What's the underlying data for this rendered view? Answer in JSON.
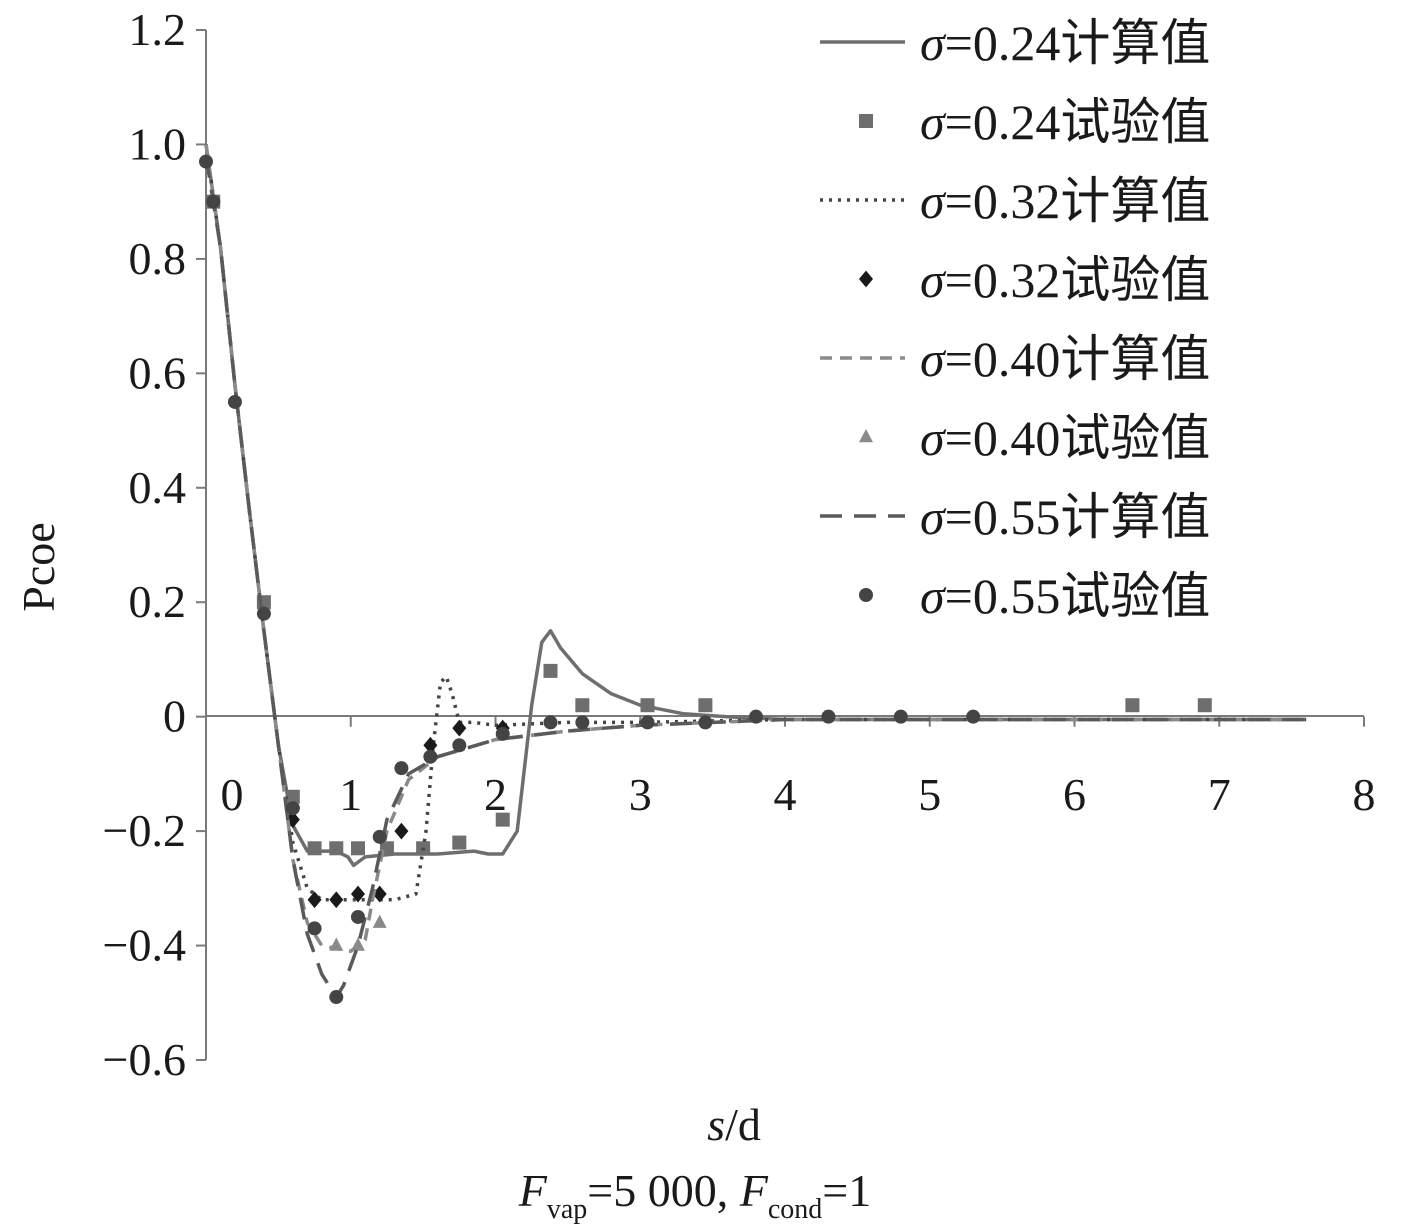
{
  "chart_data": {
    "type": "line",
    "ylabel": "Pcoe",
    "xlabel": {
      "var": "s",
      "rest": "/d"
    },
    "caption": {
      "F1": "F",
      "sub1": "vap",
      "mid": "=5 000,  ",
      "F2": "F",
      "sub2": "cond",
      "end": "=1"
    },
    "xlim": [
      0,
      8
    ],
    "ylim": [
      -0.6,
      1.2
    ],
    "x_ticks": [
      "0",
      "1",
      "2",
      "3",
      "4",
      "5",
      "6",
      "7",
      "8"
    ],
    "y_ticks": [
      "1.2",
      "1.0",
      "0.8",
      "0.6",
      "0.4",
      "0.2",
      "0",
      "−0.2",
      "−0.4",
      "−0.6"
    ],
    "y_tick_values": [
      1.2,
      1.0,
      0.8,
      0.6,
      0.4,
      0.2,
      0,
      -0.2,
      -0.4,
      -0.6
    ],
    "x_tick_values": [
      0,
      1,
      2,
      3,
      4,
      5,
      6,
      7,
      8
    ],
    "legend_position": "top-right",
    "series": [
      {
        "name": "σ=0.24计算值",
        "sigma": "σ",
        "label": "=0.24计算值",
        "kind": "line",
        "style": "solid",
        "color": "#6e6e6e",
        "points": [
          [
            0,
            1.0
          ],
          [
            0.1,
            0.82
          ],
          [
            0.2,
            0.58
          ],
          [
            0.3,
            0.36
          ],
          [
            0.4,
            0.15
          ],
          [
            0.5,
            -0.05
          ],
          [
            0.6,
            -0.19
          ],
          [
            0.7,
            -0.235
          ],
          [
            0.9,
            -0.235
          ],
          [
            0.98,
            -0.245
          ],
          [
            1.02,
            -0.26
          ],
          [
            1.1,
            -0.245
          ],
          [
            1.3,
            -0.24
          ],
          [
            1.6,
            -0.24
          ],
          [
            1.85,
            -0.235
          ],
          [
            1.95,
            -0.24
          ],
          [
            2.05,
            -0.24
          ],
          [
            2.15,
            -0.2
          ],
          [
            2.25,
            0.02
          ],
          [
            2.32,
            0.13
          ],
          [
            2.38,
            0.15
          ],
          [
            2.45,
            0.12
          ],
          [
            2.6,
            0.075
          ],
          [
            2.8,
            0.04
          ],
          [
            3.0,
            0.02
          ],
          [
            3.3,
            0.005
          ],
          [
            3.6,
            0.0
          ],
          [
            4.0,
            -0.005
          ],
          [
            5.0,
            -0.005
          ],
          [
            6.0,
            -0.005
          ],
          [
            7.6,
            -0.005
          ]
        ]
      },
      {
        "name": "σ=0.24试验值",
        "sigma": "σ",
        "label": "=0.24试验值",
        "kind": "marker",
        "marker": "square",
        "color": "#6e6e6e",
        "points": [
          [
            0.05,
            0.9
          ],
          [
            0.4,
            0.2
          ],
          [
            0.6,
            -0.14
          ],
          [
            0.75,
            -0.23
          ],
          [
            0.9,
            -0.23
          ],
          [
            1.05,
            -0.23
          ],
          [
            1.25,
            -0.23
          ],
          [
            1.5,
            -0.23
          ],
          [
            1.75,
            -0.22
          ],
          [
            2.05,
            -0.18
          ],
          [
            2.38,
            0.08
          ],
          [
            2.6,
            0.02
          ],
          [
            3.05,
            0.02
          ],
          [
            3.45,
            0.02
          ],
          [
            6.4,
            0.02
          ],
          [
            6.9,
            0.02
          ]
        ]
      },
      {
        "name": "σ=0.32计算值",
        "sigma": "σ",
        "label": "=0.32计算值",
        "kind": "line",
        "style": "dotted",
        "color": "#444444",
        "points": [
          [
            0,
            1.0
          ],
          [
            0.1,
            0.82
          ],
          [
            0.2,
            0.58
          ],
          [
            0.3,
            0.36
          ],
          [
            0.4,
            0.15
          ],
          [
            0.5,
            -0.05
          ],
          [
            0.6,
            -0.22
          ],
          [
            0.7,
            -0.3
          ],
          [
            0.8,
            -0.32
          ],
          [
            1.0,
            -0.32
          ],
          [
            1.3,
            -0.32
          ],
          [
            1.45,
            -0.31
          ],
          [
            1.52,
            -0.2
          ],
          [
            1.57,
            -0.05
          ],
          [
            1.62,
            0.06
          ],
          [
            1.66,
            0.07
          ],
          [
            1.7,
            0.04
          ],
          [
            1.75,
            -0.01
          ],
          [
            1.85,
            -0.01
          ],
          [
            2.0,
            -0.015
          ],
          [
            2.5,
            -0.01
          ],
          [
            3.0,
            -0.01
          ],
          [
            4.0,
            -0.005
          ],
          [
            6.0,
            -0.005
          ],
          [
            7.6,
            -0.005
          ]
        ]
      },
      {
        "name": "σ=0.32试验值",
        "sigma": "σ",
        "label": "=0.32试验值",
        "kind": "marker",
        "marker": "diamond",
        "color": "#1a1a1a",
        "points": [
          [
            0.6,
            -0.18
          ],
          [
            0.75,
            -0.32
          ],
          [
            0.9,
            -0.32
          ],
          [
            1.05,
            -0.31
          ],
          [
            1.2,
            -0.31
          ],
          [
            1.35,
            -0.2
          ],
          [
            1.55,
            -0.05
          ],
          [
            1.75,
            -0.02
          ],
          [
            2.05,
            -0.02
          ]
        ]
      },
      {
        "name": "σ=0.40计算值",
        "sigma": "σ",
        "label": "=0.40计算值",
        "kind": "line",
        "style": "short-dash",
        "color": "#8a8a8a",
        "points": [
          [
            0,
            1.0
          ],
          [
            0.1,
            0.82
          ],
          [
            0.2,
            0.58
          ],
          [
            0.3,
            0.36
          ],
          [
            0.4,
            0.15
          ],
          [
            0.5,
            -0.05
          ],
          [
            0.6,
            -0.25
          ],
          [
            0.7,
            -0.36
          ],
          [
            0.8,
            -0.4
          ],
          [
            1.0,
            -0.41
          ],
          [
            1.1,
            -0.39
          ],
          [
            1.15,
            -0.32
          ],
          [
            1.25,
            -0.2
          ],
          [
            1.4,
            -0.11
          ],
          [
            1.6,
            -0.07
          ],
          [
            2.0,
            -0.04
          ],
          [
            2.5,
            -0.025
          ],
          [
            3.0,
            -0.015
          ],
          [
            4.0,
            -0.005
          ],
          [
            6.0,
            -0.005
          ],
          [
            7.6,
            -0.005
          ]
        ]
      },
      {
        "name": "σ=0.40试验值",
        "sigma": "σ",
        "label": "=0.40试验值",
        "kind": "marker",
        "marker": "triangle",
        "color": "#8a8a8a",
        "points": [
          [
            0.9,
            -0.4
          ],
          [
            1.05,
            -0.4
          ],
          [
            1.2,
            -0.36
          ]
        ]
      },
      {
        "name": "σ=0.55计算值",
        "sigma": "σ",
        "label": "=0.55计算值",
        "kind": "line",
        "style": "long-dash",
        "color": "#5a5a5a",
        "points": [
          [
            0,
            0.98
          ],
          [
            0.1,
            0.82
          ],
          [
            0.2,
            0.58
          ],
          [
            0.3,
            0.36
          ],
          [
            0.4,
            0.15
          ],
          [
            0.5,
            -0.05
          ],
          [
            0.6,
            -0.25
          ],
          [
            0.7,
            -0.38
          ],
          [
            0.8,
            -0.45
          ],
          [
            0.9,
            -0.49
          ],
          [
            0.95,
            -0.47
          ],
          [
            1.05,
            -0.4
          ],
          [
            1.15,
            -0.3
          ],
          [
            1.25,
            -0.18
          ],
          [
            1.4,
            -0.1
          ],
          [
            1.6,
            -0.07
          ],
          [
            2.0,
            -0.04
          ],
          [
            2.5,
            -0.025
          ],
          [
            3.0,
            -0.015
          ],
          [
            4.0,
            -0.005
          ],
          [
            6.0,
            -0.005
          ],
          [
            7.6,
            -0.005
          ]
        ]
      },
      {
        "name": "σ=0.55试验值",
        "sigma": "σ",
        "label": "=0.55试验值",
        "kind": "marker",
        "marker": "circle",
        "color": "#444444",
        "points": [
          [
            0,
            0.97
          ],
          [
            0.05,
            0.9
          ],
          [
            0.2,
            0.55
          ],
          [
            0.4,
            0.18
          ],
          [
            0.6,
            -0.16
          ],
          [
            0.75,
            -0.37
          ],
          [
            0.9,
            -0.49
          ],
          [
            1.05,
            -0.35
          ],
          [
            1.2,
            -0.21
          ],
          [
            1.35,
            -0.09
          ],
          [
            1.55,
            -0.07
          ],
          [
            1.75,
            -0.05
          ],
          [
            2.05,
            -0.03
          ],
          [
            2.38,
            -0.01
          ],
          [
            2.6,
            -0.01
          ],
          [
            3.05,
            -0.01
          ],
          [
            3.45,
            -0.01
          ],
          [
            3.8,
            0.0
          ],
          [
            4.3,
            0.0
          ],
          [
            4.8,
            0.0
          ],
          [
            5.3,
            0.0
          ]
        ]
      }
    ]
  }
}
